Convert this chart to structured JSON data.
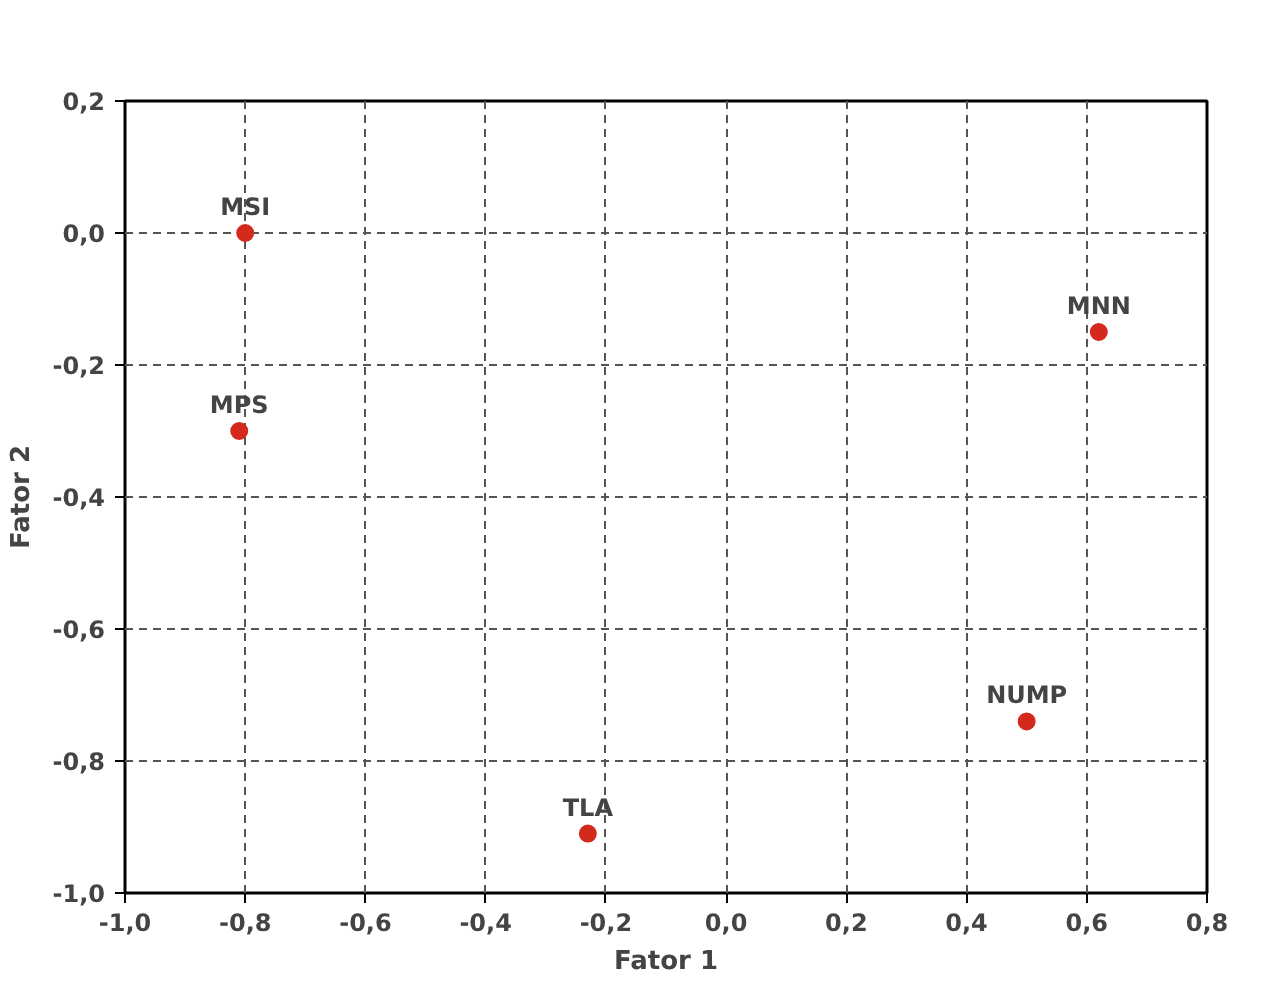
{
  "chart_data": {
    "type": "scatter",
    "xlabel": "Fator 1",
    "ylabel": "Fator 2",
    "x": [
      -0.8,
      -0.81,
      -0.23,
      0.62,
      0.5
    ],
    "series": [
      {
        "color": "#d42a1e",
        "values": [
          0.0,
          -0.3,
          -0.91,
          -0.15,
          -0.74
        ]
      }
    ],
    "annotations": [
      {
        "text": "MSI",
        "x": -0.8,
        "y": 0.0
      },
      {
        "text": "MPS",
        "x": -0.81,
        "y": -0.3
      },
      {
        "text": "TLA",
        "x": -0.23,
        "y": -0.91
      },
      {
        "text": "MNN",
        "x": 0.62,
        "y": -0.15
      },
      {
        "text": "NUMP",
        "x": 0.5,
        "y": -0.74
      }
    ],
    "xlim": [
      -1.0,
      0.8
    ],
    "ylim": [
      -1.0,
      0.2
    ],
    "xticks": [
      {
        "value": -1.0,
        "label": "-1,0"
      },
      {
        "value": -0.8,
        "label": "-0,8"
      },
      {
        "value": -0.6,
        "label": "-0,6"
      },
      {
        "value": -0.4,
        "label": "-0,4"
      },
      {
        "value": -0.2,
        "label": "-0,2"
      },
      {
        "value": 0.0,
        "label": "0,0"
      },
      {
        "value": 0.2,
        "label": "0,2"
      },
      {
        "value": 0.4,
        "label": "0,4"
      },
      {
        "value": 0.6,
        "label": "0,6"
      },
      {
        "value": 0.8,
        "label": "0,8"
      }
    ],
    "yticks": [
      {
        "value": -1.0,
        "label": "-1,0"
      },
      {
        "value": -0.8,
        "label": "-0,8"
      },
      {
        "value": -0.6,
        "label": "-0,6"
      },
      {
        "value": -0.4,
        "label": "-0,4"
      },
      {
        "value": -0.2,
        "label": "-0,2"
      },
      {
        "value": 0.0,
        "label": "0,0"
      },
      {
        "value": 0.2,
        "label": "0,2"
      }
    ],
    "grid": true,
    "marker": "circle"
  }
}
